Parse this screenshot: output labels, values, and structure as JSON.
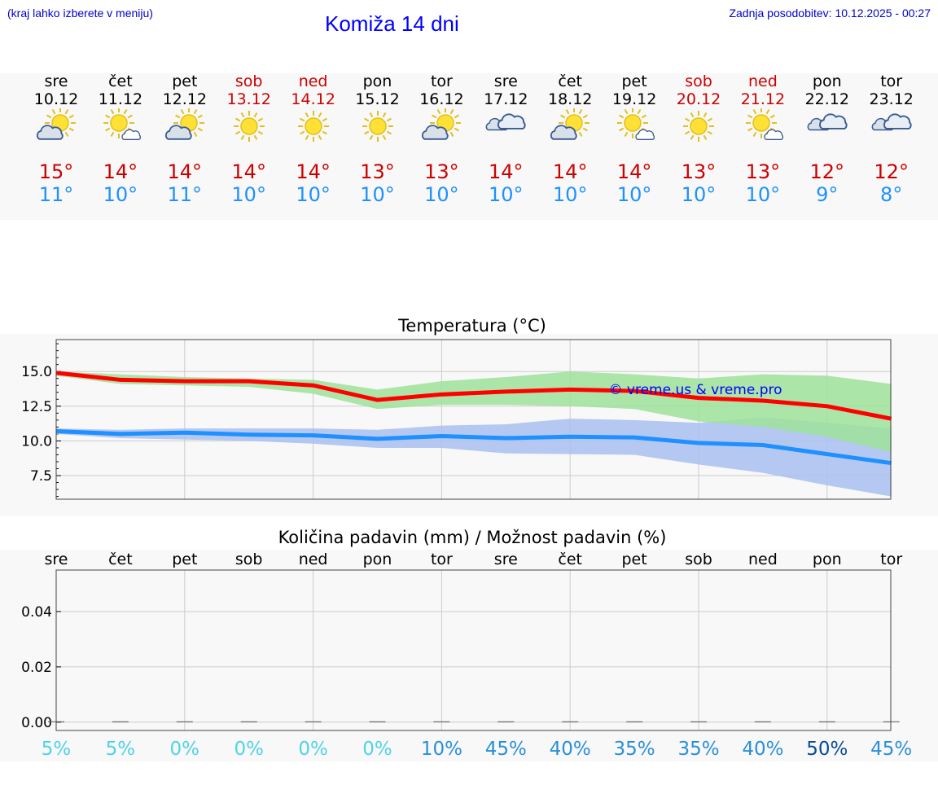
{
  "header": {
    "location_hint": "(kraj lahko izberete v meniju)",
    "title": "Komiža 14 dni",
    "updated": "Zadnja posodobitev: 10.12.2025 - 00:27"
  },
  "days": [
    {
      "day": "sre",
      "date": "10.12",
      "weekend": false,
      "icon": "sun-cloud-icon",
      "tmax": "15°",
      "tmin": "11°"
    },
    {
      "day": "čet",
      "date": "11.12",
      "weekend": false,
      "icon": "sun-small-cloud-icon",
      "tmax": "14°",
      "tmin": "10°"
    },
    {
      "day": "pet",
      "date": "12.12",
      "weekend": false,
      "icon": "sun-cloud-icon",
      "tmax": "14°",
      "tmin": "11°"
    },
    {
      "day": "sob",
      "date": "13.12",
      "weekend": true,
      "icon": "sun-icon",
      "tmax": "14°",
      "tmin": "10°"
    },
    {
      "day": "ned",
      "date": "14.12",
      "weekend": true,
      "icon": "sun-icon",
      "tmax": "14°",
      "tmin": "10°"
    },
    {
      "day": "pon",
      "date": "15.12",
      "weekend": false,
      "icon": "sun-icon",
      "tmax": "13°",
      "tmin": "10°"
    },
    {
      "day": "tor",
      "date": "16.12",
      "weekend": false,
      "icon": "sun-cloud-icon",
      "tmax": "13°",
      "tmin": "10°"
    },
    {
      "day": "sre",
      "date": "17.12",
      "weekend": false,
      "icon": "cloud-icon",
      "tmax": "14°",
      "tmin": "10°"
    },
    {
      "day": "čet",
      "date": "18.12",
      "weekend": false,
      "icon": "sun-cloud-icon",
      "tmax": "14°",
      "tmin": "10°"
    },
    {
      "day": "pet",
      "date": "19.12",
      "weekend": false,
      "icon": "sun-small-cloud-icon",
      "tmax": "14°",
      "tmin": "10°"
    },
    {
      "day": "sob",
      "date": "20.12",
      "weekend": true,
      "icon": "sun-icon",
      "tmax": "13°",
      "tmin": "10°"
    },
    {
      "day": "ned",
      "date": "21.12",
      "weekend": true,
      "icon": "sun-small-cloud-icon",
      "tmax": "13°",
      "tmin": "10°"
    },
    {
      "day": "pon",
      "date": "22.12",
      "weekend": false,
      "icon": "cloud-icon",
      "tmax": "12°",
      "tmin": "9°"
    },
    {
      "day": "tor",
      "date": "23.12",
      "weekend": false,
      "icon": "cloud-icon",
      "tmax": "12°",
      "tmin": "8°"
    }
  ],
  "chart_data": [
    {
      "type": "line",
      "title": "Temperatura (°C)",
      "watermark": "© vreme.us & vreme.pro",
      "x": [
        0,
        1,
        2,
        3,
        4,
        5,
        6,
        7,
        8,
        9,
        10,
        11,
        12,
        13
      ],
      "ylim": [
        5.8,
        17.3
      ],
      "yticks": [
        7.5,
        10.0,
        12.5,
        15.0
      ],
      "ytick_labels": [
        "7.5",
        "10.0",
        "12.5",
        "15.0"
      ],
      "grid": true,
      "series": [
        {
          "name": "max",
          "color": "#ff0000",
          "values": [
            14.9,
            14.4,
            14.3,
            14.3,
            14.0,
            12.95,
            13.35,
            13.55,
            13.7,
            13.6,
            13.1,
            12.9,
            12.5,
            11.6
          ]
        },
        {
          "name": "max_range_high",
          "color": "#9fe29a",
          "values": [
            15.0,
            14.8,
            14.6,
            14.5,
            14.4,
            13.7,
            14.3,
            14.6,
            15.0,
            14.8,
            14.5,
            14.8,
            14.7,
            14.1
          ]
        },
        {
          "name": "max_range_low",
          "color": "#9fe29a",
          "values": [
            14.7,
            14.1,
            14.0,
            13.9,
            13.4,
            12.3,
            12.6,
            12.6,
            12.5,
            12.3,
            11.4,
            11.0,
            10.3,
            9.2
          ]
        },
        {
          "name": "min",
          "color": "#1e90ff",
          "values": [
            10.7,
            10.5,
            10.6,
            10.45,
            10.4,
            10.15,
            10.35,
            10.2,
            10.3,
            10.25,
            9.85,
            9.7,
            9.05,
            8.4
          ]
        },
        {
          "name": "min_range_high",
          "color": "#a8c0f0",
          "values": [
            10.9,
            10.8,
            10.9,
            10.9,
            10.9,
            10.8,
            11.1,
            11.2,
            11.6,
            11.5,
            11.3,
            11.7,
            11.3,
            10.9
          ]
        },
        {
          "name": "min_range_low",
          "color": "#a8c0f0",
          "values": [
            10.5,
            10.2,
            10.1,
            10.0,
            9.8,
            9.5,
            9.5,
            9.1,
            9.05,
            9.0,
            8.3,
            7.7,
            6.8,
            6.0
          ]
        }
      ]
    },
    {
      "type": "bar",
      "title": "Količina padavin (mm) / Možnost padavin (%)",
      "categories": [
        "sre",
        "čet",
        "pet",
        "sob",
        "ned",
        "pon",
        "tor",
        "sre",
        "čet",
        "pet",
        "sob",
        "ned",
        "pon",
        "tor"
      ],
      "values": [
        0,
        0,
        0,
        0,
        0,
        0,
        0,
        0,
        0,
        0,
        0,
        0,
        0,
        0
      ],
      "ylim": [
        -0.003,
        0.055
      ],
      "yticks": [
        0.0,
        0.02,
        0.04
      ],
      "ytick_labels": [
        "0.00",
        "0.02",
        "0.04"
      ],
      "grid": true,
      "probability_labels": [
        "5%",
        "5%",
        "0%",
        "0%",
        "0%",
        "0%",
        "10%",
        "45%",
        "40%",
        "35%",
        "35%",
        "40%",
        "50%",
        "45%"
      ],
      "probability_values": [
        5,
        5,
        0,
        0,
        0,
        0,
        10,
        45,
        40,
        35,
        35,
        40,
        50,
        45
      ]
    }
  ]
}
